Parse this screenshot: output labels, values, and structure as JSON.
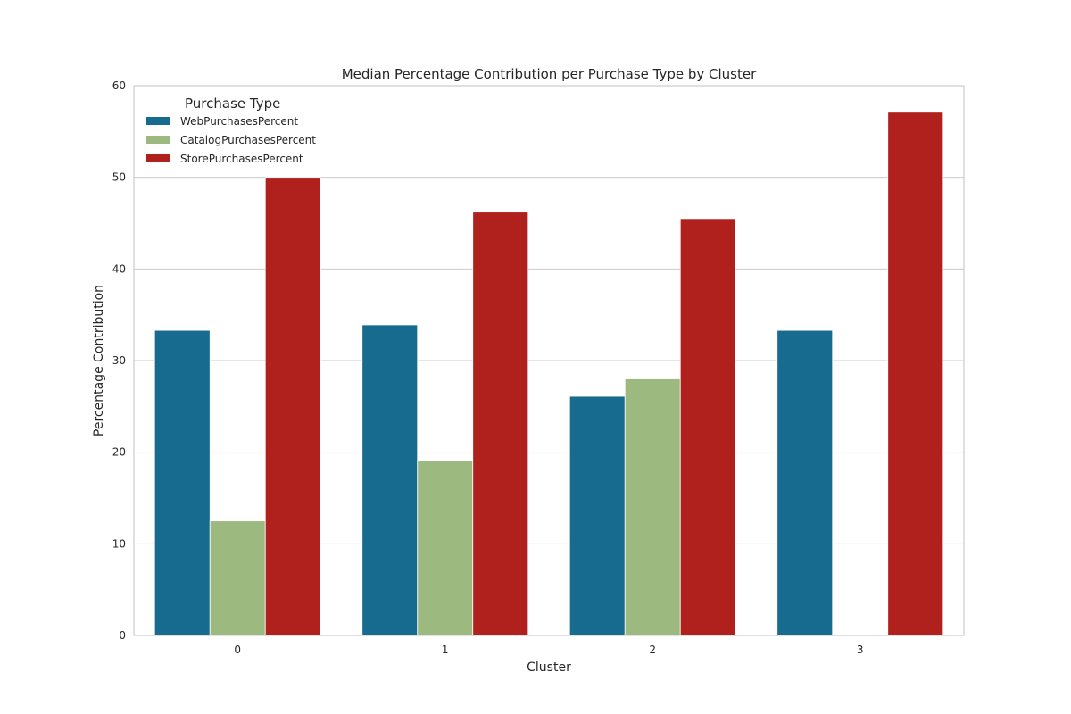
{
  "chart_data": {
    "type": "bar",
    "title": "Median Percentage Contribution per Purchase Type by Cluster",
    "xlabel": "Cluster",
    "ylabel": "Percentage Contribution",
    "categories": [
      "0",
      "1",
      "2",
      "3"
    ],
    "ylim": [
      0,
      60
    ],
    "yticks": [
      "0",
      "10",
      "20",
      "30",
      "40",
      "50",
      "60"
    ],
    "grid": true,
    "legend": {
      "title": "Purchase Type",
      "placement": "top-left"
    },
    "series": [
      {
        "name": "WebPurchasesPercent",
        "color": "#176b8e",
        "values": [
          33.3,
          33.9,
          26.1,
          33.3
        ]
      },
      {
        "name": "CatalogPurchasesPercent",
        "color": "#9cba7f",
        "values": [
          12.5,
          19.1,
          28.0,
          0
        ]
      },
      {
        "name": "StorePurchasesPercent",
        "color": "#b0201c",
        "values": [
          50.0,
          46.2,
          45.5,
          57.1
        ]
      }
    ]
  }
}
